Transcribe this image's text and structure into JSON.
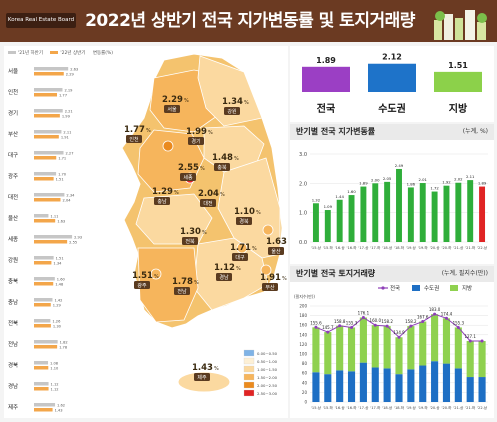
{
  "header": {
    "logo": "Korea Real Estate Board",
    "title": "2022년 상반기 전국 지가변동률 및 토지거래량"
  },
  "map_legend": {
    "items": [
      "'21년 하반기",
      "'22년 상반기",
      "변동률(%)"
    ],
    "colors": [
      "#c6c6c6",
      "#f3a64a"
    ]
  },
  "region_bars": [
    {
      "name": "서울",
      "h2_21": 2.63,
      "h1_22": 2.29
    },
    {
      "name": "인천",
      "h2_21": 2.19,
      "h1_22": 1.77
    },
    {
      "name": "경기",
      "h2_21": 2.21,
      "h1_22": 1.99
    },
    {
      "name": "부산",
      "h2_21": 2.11,
      "h1_22": 1.91
    },
    {
      "name": "대구",
      "h2_21": 2.27,
      "h1_22": 1.71
    },
    {
      "name": "광주",
      "h2_21": 1.7,
      "h1_22": 1.51
    },
    {
      "name": "대전",
      "h2_21": 2.34,
      "h1_22": 2.04
    },
    {
      "name": "울산",
      "h2_21": 1.11,
      "h1_22": 1.63
    },
    {
      "name": "세종",
      "h2_21": 2.93,
      "h1_22": 2.55
    },
    {
      "name": "강원",
      "h2_21": 1.51,
      "h1_22": 1.34
    },
    {
      "name": "충북",
      "h2_21": 1.6,
      "h1_22": 1.48
    },
    {
      "name": "충남",
      "h2_21": 1.42,
      "h1_22": 1.29
    },
    {
      "name": "전북",
      "h2_21": 1.26,
      "h1_22": 1.3
    },
    {
      "name": "전남",
      "h2_21": 1.82,
      "h1_22": 1.78
    },
    {
      "name": "경북",
      "h2_21": 1.08,
      "h1_22": 1.1
    },
    {
      "name": "경남",
      "h2_21": 1.12,
      "h1_22": 1.12
    },
    {
      "name": "제주",
      "h2_21": 1.62,
      "h1_22": 1.43
    }
  ],
  "map_labels": [
    {
      "name": "서울",
      "value": "2.29"
    },
    {
      "name": "인천",
      "value": "1.77"
    },
    {
      "name": "경기",
      "value": "1.99"
    },
    {
      "name": "강원",
      "value": "1.34"
    },
    {
      "name": "세종",
      "value": "2.55"
    },
    {
      "name": "충북",
      "value": "1.48"
    },
    {
      "name": "충남",
      "value": "1.29"
    },
    {
      "name": "대전",
      "value": "2.04"
    },
    {
      "name": "경북",
      "value": "1.10"
    },
    {
      "name": "대구",
      "value": "1.71"
    },
    {
      "name": "전북",
      "value": "1.30"
    },
    {
      "name": "울산",
      "value": "1.63"
    },
    {
      "name": "경남",
      "value": "1.12"
    },
    {
      "name": "부산",
      "value": "1.91"
    },
    {
      "name": "광주",
      "value": "1.51"
    },
    {
      "name": "전남",
      "value": "1.78"
    },
    {
      "name": "제주",
      "value": "1.43"
    }
  ],
  "map_scale": {
    "labels": [
      "0.00~0.50",
      "0.50~1.00",
      "1.00~1.50",
      "1.50~2.00",
      "2.00~2.50",
      "2.50~3.00"
    ],
    "colors": [
      "#7fb3e6",
      "#fdf0d5",
      "#fbd9a0",
      "#f6b55c",
      "#ea8a1e",
      "#e02424"
    ]
  },
  "summary": {
    "items": [
      {
        "label": "전국",
        "value": "1.89",
        "color": "#9b3fc4"
      },
      {
        "label": "수도권",
        "value": "2.12",
        "color": "#1e73c9"
      },
      {
        "label": "지방",
        "value": "1.51",
        "color": "#8cd14a"
      }
    ]
  },
  "chart_data": [
    {
      "type": "bar",
      "title": "반기별 전국 지가변동률",
      "unit": "(누계, %)",
      "categories": [
        "'15.상",
        "'15.하",
        "'16.상",
        "'16.하",
        "'17.상",
        "'17.하",
        "'18.상",
        "'18.하",
        "'19.상",
        "'19.하",
        "'20.상",
        "'20.하",
        "'21.상",
        "'21.하",
        "'22.상"
      ],
      "values": [
        1.32,
        1.09,
        1.44,
        1.6,
        1.89,
        2.0,
        2.05,
        2.49,
        1.86,
        2.01,
        1.72,
        1.92,
        2.02,
        2.11,
        1.89
      ],
      "value_labels": [
        "1.32",
        "1.09",
        "1.44",
        "1.60",
        "1.89",
        "2.00",
        "2.05",
        "2.49",
        "1.86",
        "2.01",
        "1.72",
        "1.92",
        "2.02",
        "2.11",
        "1.89"
      ],
      "ylim": [
        0,
        3.0
      ],
      "yticks": [
        "0.0",
        "1.0",
        "2.0",
        "3.0"
      ],
      "colors": {
        "bar": "#2fae3a",
        "last": "#e02424"
      }
    },
    {
      "type": "bar",
      "title": "반기별 전국 토지거래량",
      "unit": "(누계, 필지수(만))",
      "y_axis_title": "(필지수(만))",
      "categories": [
        "'15.상",
        "'15.하",
        "'16.상",
        "'16.하",
        "'17.상",
        "'17.하",
        "'18.상",
        "'18.하",
        "'19.상",
        "'19.하",
        "'20.상",
        "'20.하",
        "'21.상",
        "'21.하",
        "'22.상"
      ],
      "series": [
        {
          "name": "전국",
          "values": [
            155.6,
            145.7,
            158.8,
            155.3,
            176.1,
            160.0,
            158.2,
            134.9,
            158.2,
            167.6,
            183.0,
            174.4,
            155.3,
            127.1,
            127.1
          ]
        },
        {
          "name": "수도권",
          "values": [
            62,
            58,
            66,
            64,
            82,
            72,
            70,
            58,
            68,
            76,
            85,
            80,
            70,
            52,
            52
          ]
        },
        {
          "name": "지방",
          "values": [
            93.6,
            87.7,
            92.8,
            91.3,
            94.1,
            88.0,
            88.2,
            76.9,
            90.2,
            91.6,
            98.0,
            94.4,
            85.3,
            75.1,
            75.1
          ]
        }
      ],
      "value_labels": [
        "155.6",
        "145.7",
        "158.8",
        "155.3",
        "176.1",
        "160.0",
        "158.2",
        "134.9",
        "158.2",
        "167.6",
        "183.0",
        "174.4",
        "155.3",
        "127.1",
        ""
      ],
      "ylim": [
        0,
        200
      ],
      "yticks": [
        "0",
        "20",
        "40",
        "60",
        "80",
        "100",
        "120",
        "140",
        "160",
        "180",
        "200"
      ],
      "colors": {
        "전국": "#8e3fb8",
        "수도권": "#1e6fc4",
        "지방": "#8fd14f"
      }
    }
  ]
}
